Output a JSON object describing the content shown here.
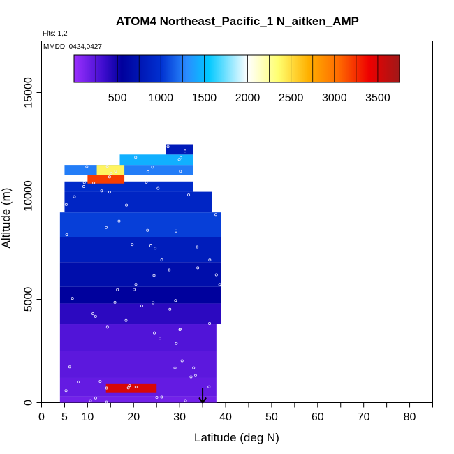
{
  "chart_data": {
    "type": "heatmap",
    "title": "ATOM4 Northeast_Pacific_1 N_aitken_AMP",
    "flights_text": "Flts: 1,2",
    "dates_text": "MMDD: 0424,0427",
    "xlabel": "Latitude (deg N)",
    "ylabel": "Altitude (m)",
    "xlim": [
      0,
      85
    ],
    "ylim": [
      0,
      17500
    ],
    "x_ticks": [
      0,
      5,
      10,
      20,
      30,
      40,
      50,
      60,
      70,
      80
    ],
    "x_minor_ticks": [
      15,
      25,
      35,
      45,
      55,
      65,
      75,
      85
    ],
    "y_ticks": [
      0,
      5000,
      10000,
      15000
    ],
    "colorbar": {
      "ticks": [
        500,
        1000,
        1500,
        2000,
        2500,
        3000,
        3500
      ],
      "range": [
        0,
        3750
      ],
      "stops": [
        {
          "v": 0,
          "color": "#9b30ff"
        },
        {
          "v": 350,
          "color": "#3b0ccc"
        },
        {
          "v": 550,
          "color": "#00009c"
        },
        {
          "v": 1000,
          "color": "#0030d0"
        },
        {
          "v": 1300,
          "color": "#2a8cff"
        },
        {
          "v": 1550,
          "color": "#00c8ff"
        },
        {
          "v": 2000,
          "color": "#ffffff"
        },
        {
          "v": 2350,
          "color": "#ffff70"
        },
        {
          "v": 2700,
          "color": "#ffb000"
        },
        {
          "v": 3050,
          "color": "#ff6a00"
        },
        {
          "v": 3400,
          "color": "#ee0000"
        },
        {
          "v": 3750,
          "color": "#a01818"
        }
      ]
    },
    "curtain": [
      {
        "alt": [
          0,
          300
        ],
        "lat": [
          4,
          38
        ],
        "v": 150
      },
      {
        "alt": [
          300,
          1200
        ],
        "lat": [
          4,
          38
        ],
        "v": 200
      },
      {
        "alt": [
          500,
          900
        ],
        "lat": [
          14,
          25
        ],
        "v": 3500
      },
      {
        "alt": [
          1200,
          2500
        ],
        "lat": [
          4,
          38
        ],
        "v": 230
      },
      {
        "alt": [
          2500,
          3800
        ],
        "lat": [
          4,
          38
        ],
        "v": 270
      },
      {
        "alt": [
          3800,
          4800
        ],
        "lat": [
          4,
          39
        ],
        "v": 400
      },
      {
        "alt": [
          4800,
          5600
        ],
        "lat": [
          4,
          39
        ],
        "v": 560
      },
      {
        "alt": [
          5600,
          6800
        ],
        "lat": [
          4,
          39
        ],
        "v": 680
      },
      {
        "alt": [
          6800,
          8000
        ],
        "lat": [
          4,
          39
        ],
        "v": 820
      },
      {
        "alt": [
          8000,
          9200
        ],
        "lat": [
          4,
          39
        ],
        "v": 1050
      },
      {
        "alt": [
          9200,
          10200
        ],
        "lat": [
          5,
          37
        ],
        "v": 900
      },
      {
        "alt": [
          10200,
          10700
        ],
        "lat": [
          5,
          33
        ],
        "v": 950
      },
      {
        "alt": [
          10600,
          11000
        ],
        "lat": [
          10,
          18
        ],
        "v": 3200
      },
      {
        "alt": [
          11000,
          11500
        ],
        "lat": [
          5,
          33
        ],
        "v": 1250
      },
      {
        "alt": [
          11000,
          11500
        ],
        "lat": [
          12,
          18
        ],
        "v": 2400
      },
      {
        "alt": [
          11500,
          12000
        ],
        "lat": [
          17,
          33
        ],
        "v": 1450
      },
      {
        "alt": [
          12000,
          12500
        ],
        "lat": [
          27,
          33
        ],
        "v": 800
      }
    ],
    "arrow": {
      "lat": 35,
      "alt_from": 700,
      "alt_to": 0
    }
  }
}
